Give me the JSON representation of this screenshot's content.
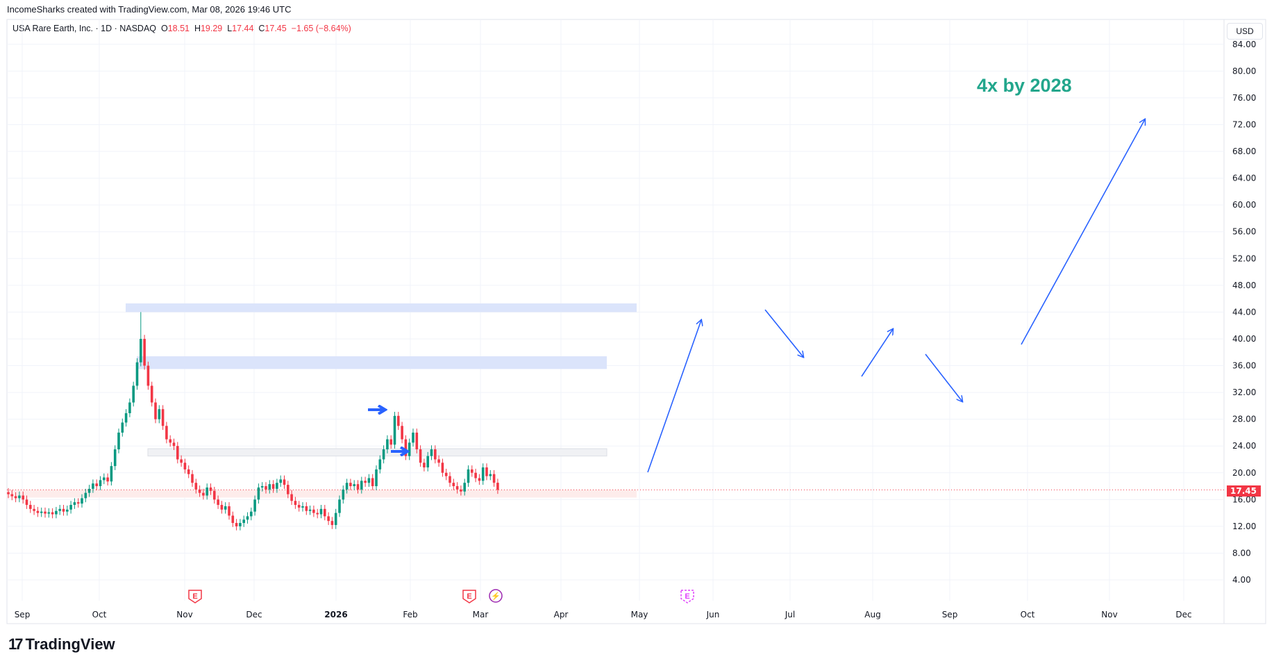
{
  "header": {
    "title": "IncomeSharks created with TradingView.com, Mar 08, 2026 19:46 UTC"
  },
  "legend": {
    "symbol": "USA Rare Earth, Inc. · 1D · NASDAQ",
    "o_label": "O",
    "o": "18.51",
    "h_label": "H",
    "h": "19.29",
    "l_label": "L",
    "l": "17.44",
    "c_label": "C",
    "c": "17.45",
    "change": "−1.65 (−8.64%)"
  },
  "axis": {
    "currency": "USD",
    "last_price": "17.45"
  },
  "annotation": {
    "text": "4x by 2028",
    "color": "#22a68c"
  },
  "footer": {
    "brand": "TradingView"
  },
  "colors": {
    "up": "#089981",
    "down": "#f23645",
    "arrow": "#2962ff"
  },
  "chart_data": {
    "type": "candlestick",
    "price_ticks": [
      84,
      80,
      76,
      72,
      68,
      64,
      60,
      56,
      52,
      48,
      44,
      40,
      36,
      32,
      28,
      24,
      20,
      16,
      12,
      8,
      4
    ],
    "time_ticks": [
      "Sep",
      "Oct",
      "Nov",
      "Dec",
      "2026",
      "Feb",
      "Mar",
      "Apr",
      "May",
      "Jun",
      "Jul",
      "Aug",
      "Sep",
      "Oct",
      "Nov",
      "Dec"
    ],
    "closes": [
      16.8,
      16.5,
      16.2,
      16.6,
      16.0,
      15.2,
      14.6,
      14.3,
      14.0,
      14.2,
      13.9,
      14.1,
      13.8,
      14.3,
      14.6,
      14.2,
      14.5,
      15.2,
      15.6,
      15.4,
      16.2,
      17.0,
      17.6,
      18.4,
      18.0,
      18.9,
      19.3,
      18.7,
      21.0,
      23.5,
      26.0,
      27.5,
      28.9,
      30.5,
      33.0,
      36.5,
      40.0,
      36.0,
      33.0,
      30.5,
      28.0,
      29.5,
      27.0,
      25.0,
      24.5,
      24.0,
      22.0,
      21.5,
      20.5,
      19.8,
      18.5,
      17.5,
      17.0,
      16.6,
      17.8,
      17.3,
      16.0,
      15.2,
      14.5,
      15.0,
      13.6,
      12.5,
      12.0,
      12.5,
      13.0,
      13.5,
      14.2,
      16.0,
      17.8,
      18.0,
      17.5,
      18.3,
      17.6,
      18.5,
      19.0,
      18.2,
      16.8,
      15.8,
      15.2,
      14.8,
      15.0,
      14.3,
      14.5,
      14.0,
      13.8,
      14.6,
      13.5,
      12.8,
      12.2,
      14.0,
      16.0,
      17.5,
      18.5,
      18.0,
      18.3,
      17.5,
      18.8,
      18.5,
      19.2,
      18.0,
      20.5,
      22.0,
      23.5,
      25.0,
      24.2,
      28.5,
      27.0,
      25.0,
      22.5,
      24.5,
      26.0,
      23.5,
      21.5,
      20.8,
      22.5,
      23.5,
      22.0,
      21.5,
      20.0,
      19.5,
      18.5,
      18.0,
      17.5,
      17.2,
      18.5,
      20.5,
      20.0,
      19.2,
      18.8,
      20.8,
      19.5,
      19.8,
      18.51,
      17.45
    ],
    "spike_high": 44.0,
    "last_price": 17.45,
    "zones": [
      {
        "from": 44,
        "to": 45.3,
        "color": "#dbe4fb"
      },
      {
        "from": 35.5,
        "to": 37.4,
        "color": "#dbe4fb"
      },
      {
        "from": 22.5,
        "to": 23.6,
        "color": "#f0f1f4"
      },
      {
        "from": 16.3,
        "to": 17.5,
        "color": "#fdeceb"
      }
    ],
    "events": [
      "E",
      "E",
      "lightning",
      "E"
    ]
  }
}
